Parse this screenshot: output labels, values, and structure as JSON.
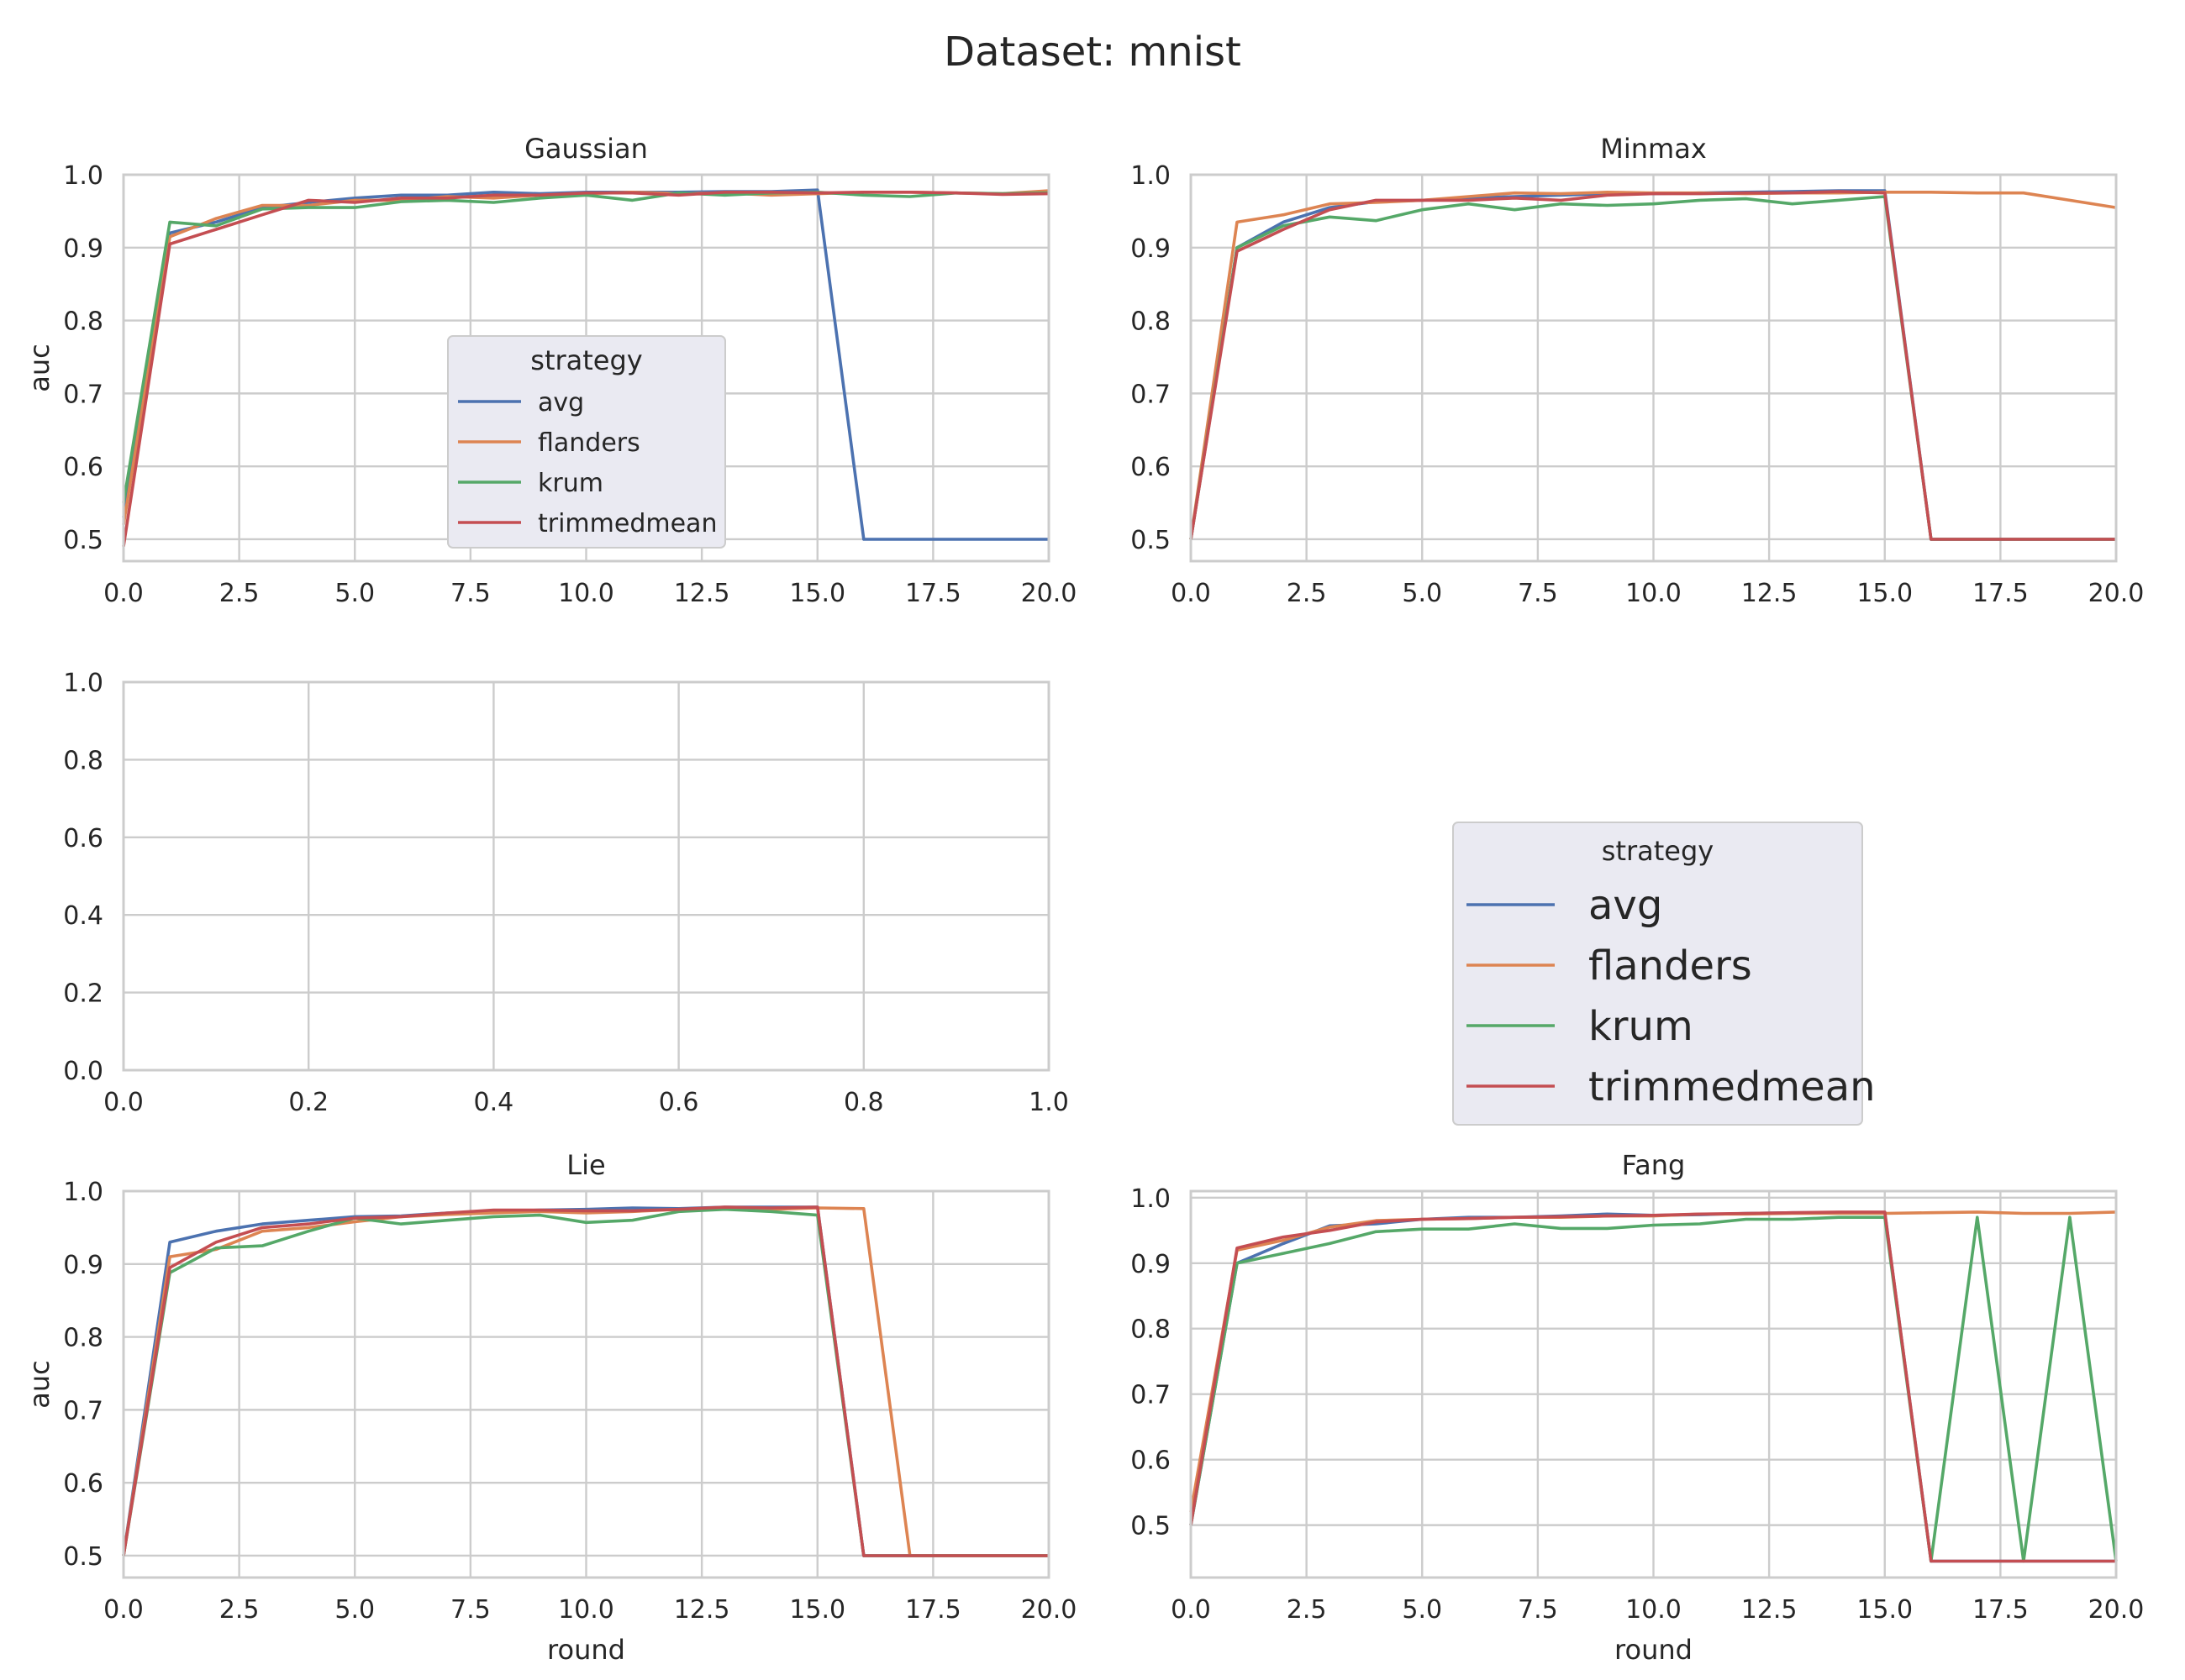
{
  "title": "Dataset: mnist",
  "colors": {
    "avg": "#4c72b0",
    "flanders": "#dd8452",
    "krum": "#55a868",
    "trimmedmean": "#c44e52"
  },
  "legend": {
    "title": "strategy",
    "entries": [
      "avg",
      "flanders",
      "krum",
      "trimmedmean"
    ]
  },
  "chart_data": [
    {
      "type": "line",
      "title": "Gaussian",
      "xlabel": "",
      "ylabel": "auc",
      "xlim": [
        0,
        20
      ],
      "ylim": [
        0.47,
        1.0
      ],
      "xticks": [
        "0.0",
        "2.5",
        "5.0",
        "7.5",
        "10.0",
        "12.5",
        "15.0",
        "17.5",
        "20.0"
      ],
      "yticks": [
        "0.5",
        "0.6",
        "0.7",
        "0.8",
        "0.9",
        "1.0"
      ],
      "legend": "center",
      "x": [
        0,
        1,
        2,
        3,
        4,
        5,
        6,
        7,
        8,
        9,
        10,
        11,
        12,
        13,
        14,
        15,
        16,
        17,
        18,
        19,
        20
      ],
      "series": [
        {
          "name": "avg",
          "values": [
            0.53,
            0.92,
            0.935,
            0.955,
            0.962,
            0.968,
            0.972,
            0.972,
            0.976,
            0.974,
            0.976,
            0.976,
            0.976,
            0.977,
            0.977,
            0.979,
            0.5,
            0.5,
            0.5,
            0.5,
            0.5
          ]
        },
        {
          "name": "flanders",
          "values": [
            0.52,
            0.915,
            0.94,
            0.958,
            0.958,
            0.965,
            0.965,
            0.97,
            0.968,
            0.972,
            0.974,
            0.976,
            0.974,
            0.975,
            0.972,
            0.974,
            0.976,
            0.976,
            0.975,
            0.974,
            0.978
          ]
        },
        {
          "name": "krum",
          "values": [
            0.55,
            0.935,
            0.93,
            0.953,
            0.955,
            0.955,
            0.963,
            0.965,
            0.962,
            0.968,
            0.972,
            0.965,
            0.975,
            0.972,
            0.975,
            0.976,
            0.972,
            0.97,
            0.975,
            0.974,
            0.975
          ]
        },
        {
          "name": "trimmedmean",
          "values": [
            0.49,
            0.905,
            0.925,
            0.945,
            0.965,
            0.962,
            0.968,
            0.968,
            0.972,
            0.972,
            0.975,
            0.975,
            0.972,
            0.976,
            0.976,
            0.975,
            0.976,
            0.976,
            0.975,
            0.973,
            0.974
          ]
        }
      ]
    },
    {
      "type": "line",
      "title": "Minmax",
      "xlabel": "",
      "ylabel": "",
      "xlim": [
        0,
        20
      ],
      "ylim": [
        0.47,
        1.0
      ],
      "xticks": [
        "0.0",
        "2.5",
        "5.0",
        "7.5",
        "10.0",
        "12.5",
        "15.0",
        "17.5",
        "20.0"
      ],
      "yticks": [
        "0.5",
        "0.6",
        "0.7",
        "0.8",
        "0.9",
        "1.0"
      ],
      "x": [
        0,
        1,
        2,
        3,
        4,
        5,
        6,
        7,
        8,
        9,
        10,
        11,
        12,
        13,
        14,
        15,
        16,
        17,
        18,
        19,
        20
      ],
      "series": [
        {
          "name": "avg",
          "values": [
            0.5,
            0.9,
            0.935,
            0.955,
            0.963,
            0.965,
            0.968,
            0.97,
            0.972,
            0.974,
            0.974,
            0.975,
            0.976,
            0.977,
            0.978,
            0.978,
            0.5,
            0.5,
            0.5,
            0.5,
            0.5
          ]
        },
        {
          "name": "flanders",
          "values": [
            0.5,
            0.935,
            0.945,
            0.96,
            0.962,
            0.965,
            0.97,
            0.975,
            0.974,
            0.976,
            0.975,
            0.975,
            0.974,
            0.975,
            0.975,
            0.976,
            0.976,
            0.975,
            0.975,
            0.965,
            0.955
          ]
        },
        {
          "name": "krum",
          "values": [
            0.5,
            0.9,
            0.93,
            0.942,
            0.937,
            0.952,
            0.96,
            0.952,
            0.96,
            0.958,
            0.96,
            0.965,
            0.967,
            0.96,
            0.965,
            0.97,
            0.5,
            0.5,
            0.5,
            0.5,
            0.5
          ]
        },
        {
          "name": "trimmedmean",
          "values": [
            0.5,
            0.895,
            0.925,
            0.952,
            0.965,
            0.965,
            0.965,
            0.968,
            0.965,
            0.972,
            0.974,
            0.974,
            0.975,
            0.975,
            0.977,
            0.975,
            0.5,
            0.5,
            0.5,
            0.5,
            0.5
          ]
        }
      ]
    },
    {
      "type": "line",
      "title": "",
      "xlabel": "",
      "ylabel": "",
      "xlim": [
        0,
        1
      ],
      "ylim": [
        0,
        1
      ],
      "xticks": [
        "0.0",
        "0.2",
        "0.4",
        "0.6",
        "0.8",
        "1.0"
      ],
      "yticks": [
        "0.0",
        "0.2",
        "0.4",
        "0.6",
        "0.8",
        "1.0"
      ],
      "x": [],
      "series": []
    },
    {
      "type": "line",
      "title": "Lie",
      "xlabel": "round",
      "ylabel": "auc",
      "xlim": [
        0,
        20
      ],
      "ylim": [
        0.47,
        1.0
      ],
      "xticks": [
        "0.0",
        "2.5",
        "5.0",
        "7.5",
        "10.0",
        "12.5",
        "15.0",
        "17.5",
        "20.0"
      ],
      "yticks": [
        "0.5",
        "0.6",
        "0.7",
        "0.8",
        "0.9",
        "1.0"
      ],
      "x": [
        0,
        1,
        2,
        3,
        4,
        5,
        6,
        7,
        8,
        9,
        10,
        11,
        12,
        13,
        14,
        15,
        16,
        17,
        18,
        19,
        20
      ],
      "series": [
        {
          "name": "avg",
          "values": [
            0.5,
            0.93,
            0.945,
            0.955,
            0.96,
            0.965,
            0.966,
            0.97,
            0.972,
            0.974,
            0.975,
            0.977,
            0.976,
            0.978,
            0.978,
            0.978,
            0.5,
            0.5,
            0.5,
            0.5,
            0.5
          ]
        },
        {
          "name": "flanders",
          "values": [
            0.5,
            0.91,
            0.92,
            0.945,
            0.95,
            0.958,
            0.965,
            0.968,
            0.97,
            0.972,
            0.97,
            0.972,
            0.975,
            0.976,
            0.975,
            0.977,
            0.976,
            0.5,
            0.5,
            0.5,
            0.5
          ]
        },
        {
          "name": "krum",
          "values": [
            0.5,
            0.888,
            0.922,
            0.925,
            0.945,
            0.963,
            0.955,
            0.96,
            0.965,
            0.967,
            0.957,
            0.96,
            0.972,
            0.975,
            0.972,
            0.967,
            0.5,
            0.5,
            0.5,
            0.5,
            0.5
          ]
        },
        {
          "name": "trimmedmean",
          "values": [
            0.5,
            0.895,
            0.93,
            0.95,
            0.955,
            0.963,
            0.965,
            0.97,
            0.974,
            0.974,
            0.973,
            0.973,
            0.975,
            0.978,
            0.977,
            0.978,
            0.5,
            0.5,
            0.5,
            0.5,
            0.5
          ]
        }
      ]
    },
    {
      "type": "line",
      "title": "Fang",
      "xlabel": "round",
      "ylabel": "",
      "xlim": [
        0,
        20
      ],
      "ylim": [
        0.42,
        1.01
      ],
      "xticks": [
        "0.0",
        "2.5",
        "5.0",
        "7.5",
        "10.0",
        "12.5",
        "15.0",
        "17.5",
        "20.0"
      ],
      "yticks": [
        "0.5",
        "0.6",
        "0.7",
        "0.8",
        "0.9",
        "1.0"
      ],
      "x": [
        0,
        1,
        2,
        3,
        4,
        5,
        6,
        7,
        8,
        9,
        10,
        11,
        12,
        13,
        14,
        15,
        16,
        17,
        18,
        19,
        20
      ],
      "series": [
        {
          "name": "avg",
          "values": [
            0.5,
            0.9,
            0.93,
            0.957,
            0.96,
            0.967,
            0.97,
            0.97,
            0.972,
            0.975,
            0.973,
            0.974,
            0.976,
            0.977,
            0.977,
            0.977,
            0.445,
            0.445,
            0.445,
            0.445,
            0.445
          ]
        },
        {
          "name": "flanders",
          "values": [
            0.52,
            0.92,
            0.935,
            0.955,
            0.965,
            0.967,
            0.968,
            0.97,
            0.97,
            0.972,
            0.972,
            0.975,
            0.975,
            0.976,
            0.976,
            0.976,
            0.977,
            0.978,
            0.976,
            0.976,
            0.978
          ]
        },
        {
          "name": "krum",
          "values": [
            0.5,
            0.9,
            0.915,
            0.93,
            0.948,
            0.952,
            0.952,
            0.96,
            0.953,
            0.953,
            0.958,
            0.96,
            0.967,
            0.967,
            0.97,
            0.97,
            0.445,
            0.97,
            0.445,
            0.97,
            0.445
          ]
        },
        {
          "name": "trimmedmean",
          "values": [
            0.5,
            0.923,
            0.94,
            0.95,
            0.963,
            0.967,
            0.968,
            0.97,
            0.971,
            0.972,
            0.973,
            0.975,
            0.976,
            0.977,
            0.978,
            0.978,
            0.445,
            0.445,
            0.445,
            0.445,
            0.445
          ]
        }
      ]
    }
  ]
}
